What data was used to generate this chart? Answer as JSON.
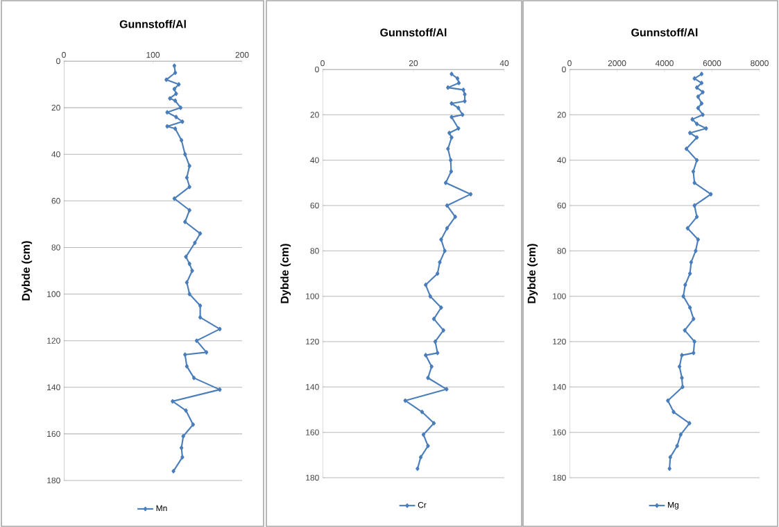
{
  "chart_data": [
    {
      "type": "line",
      "xlabel": "Gunnstoff/Al",
      "ylabel": "Dybde (cm)",
      "xlim": [
        0,
        200
      ],
      "xticks": [
        0,
        100,
        200
      ],
      "ylim": [
        180,
        0
      ],
      "yticks": [
        0,
        20,
        40,
        60,
        80,
        100,
        120,
        140,
        160,
        180
      ],
      "grid": "y",
      "legend": "bottom",
      "marker": "diamond",
      "series": [
        {
          "name": "Mn",
          "color": "#4a7ebb",
          "x": [
            124,
            125,
            115,
            129,
            124,
            126,
            119,
            125,
            131,
            116,
            126,
            133,
            116,
            125,
            132,
            136,
            141,
            138,
            141,
            124,
            141,
            136,
            153,
            147,
            137,
            141,
            144,
            138,
            141,
            153,
            153,
            175,
            149,
            160,
            136,
            138,
            146,
            175,
            122,
            137,
            145,
            134,
            132,
            133,
            123
          ],
          "values": [
            2,
            5,
            8,
            10,
            12,
            14,
            16,
            17,
            20,
            22,
            24,
            26,
            28,
            29,
            34,
            40,
            45,
            50,
            54,
            59,
            64,
            69,
            74,
            78,
            84,
            87,
            90,
            95,
            100,
            105,
            110,
            115,
            120,
            125,
            126,
            131,
            136,
            141,
            146,
            150,
            156,
            161,
            166,
            170,
            176
          ]
        }
      ]
    },
    {
      "type": "line",
      "xlabel": "Gunnstoff/Al",
      "ylabel": "Dybde (cm)",
      "xlim": [
        0,
        40
      ],
      "xticks": [
        0,
        20,
        40
      ],
      "ylim": [
        180,
        0
      ],
      "yticks": [
        0,
        20,
        40,
        60,
        80,
        100,
        120,
        140,
        160,
        180
      ],
      "grid": "y",
      "legend": "bottom",
      "marker": "diamond",
      "series": [
        {
          "name": "Cr",
          "color": "#4a7ebb",
          "x": [
            28.4,
            29.7,
            30.0,
            27.6,
            31.0,
            31.3,
            31.3,
            28.4,
            29.9,
            30.8,
            28.4,
            29.9,
            27.9,
            28.4,
            27.6,
            28.2,
            28.3,
            27.1,
            32.6,
            27.4,
            29.2,
            27.4,
            26.1,
            26.9,
            25.8,
            25.3,
            22.7,
            23.7,
            26.1,
            24.5,
            26.6,
            24.8,
            25.3,
            22.7,
            24.0,
            23.2,
            27.3,
            18.2,
            21.9,
            24.5,
            22.2,
            23.2,
            21.6,
            20.9
          ],
          "values": [
            2,
            4,
            6,
            8,
            9,
            11,
            14,
            15,
            17,
            20,
            21,
            26,
            28,
            30,
            35,
            40,
            45,
            50,
            55,
            60,
            65,
            70,
            75,
            80,
            85,
            90,
            95,
            100,
            105,
            110,
            115,
            120,
            125,
            126,
            131,
            136,
            141,
            146,
            151,
            156,
            161,
            166,
            171,
            176
          ]
        }
      ]
    },
    {
      "type": "line",
      "xlabel": "Gunnstoff/Al",
      "ylabel": "Dybde (cm)",
      "xlim": [
        0,
        8000
      ],
      "xticks": [
        0,
        2000,
        4000,
        6000,
        8000
      ],
      "ylim": [
        180,
        0
      ],
      "yticks": [
        0,
        20,
        40,
        60,
        80,
        100,
        120,
        140,
        160,
        180
      ],
      "grid": "y",
      "legend": "bottom",
      "marker": "diamond",
      "series": [
        {
          "name": "Mg",
          "color": "#4a7ebb",
          "x": [
            5560,
            5260,
            5560,
            5360,
            5610,
            5410,
            5560,
            5410,
            5610,
            5170,
            5360,
            5750,
            5070,
            5360,
            4920,
            5360,
            5210,
            5260,
            5950,
            5260,
            5360,
            4970,
            5410,
            5310,
            5120,
            5070,
            4870,
            4790,
            5070,
            5220,
            4850,
            5260,
            5220,
            4730,
            4630,
            4730,
            4760,
            4140,
            4380,
            5050,
            4680,
            4530,
            4240,
            4210
          ],
          "values": [
            2,
            4,
            6,
            8,
            10,
            12,
            15,
            17,
            20,
            22,
            24,
            26,
            28,
            30,
            35,
            40,
            45,
            50,
            55,
            60,
            65,
            70,
            75,
            80,
            85,
            90,
            95,
            100,
            105,
            110,
            115,
            120,
            125,
            126,
            131,
            136,
            140,
            146,
            151,
            156,
            161,
            166,
            171,
            176
          ]
        }
      ]
    }
  ]
}
